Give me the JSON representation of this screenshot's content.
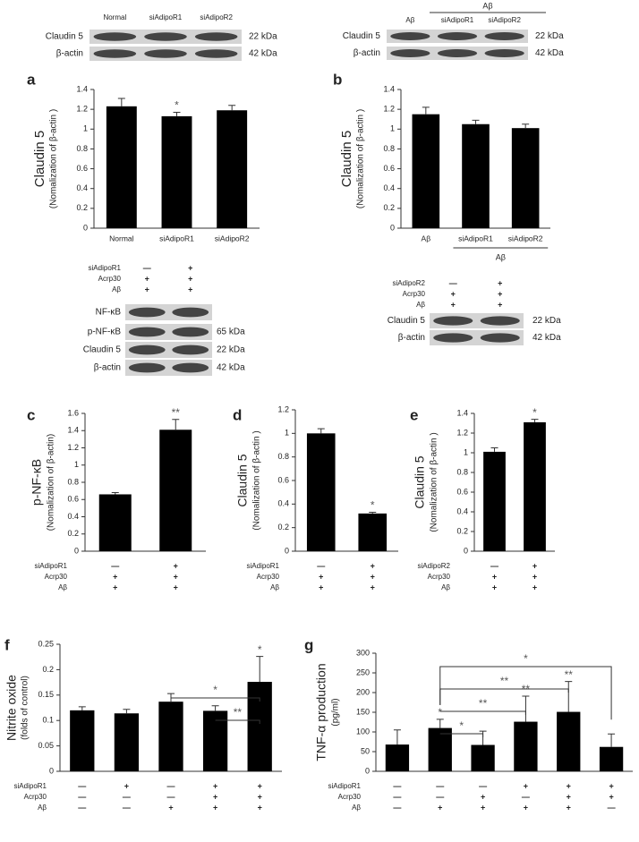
{
  "chart_data": [
    {
      "type": "bar",
      "panel": "a",
      "ylabel": "Claudin 5",
      "ylabel_sub": "(Nomalization of β-actin )",
      "categories": [
        "Normal",
        "siAdipoR1",
        "siAdipoR2"
      ],
      "values": [
        1.23,
        1.13,
        1.19
      ],
      "errors": [
        0.08,
        0.04,
        0.05
      ],
      "annotations": [
        null,
        "*",
        null
      ],
      "color": "#000000",
      "ylim": [
        0,
        1.4
      ],
      "yticks": [
        0,
        0.2,
        0.4,
        0.6,
        0.8,
        1,
        1.2,
        1.4
      ]
    },
    {
      "type": "bar",
      "panel": "b",
      "ylabel": "Claudin 5",
      "ylabel_sub": "(Nomalization of β-actin )",
      "categories": [
        "Aβ",
        "siAdipoR1",
        "siAdipoR2"
      ],
      "group_label": "Aβ",
      "values": [
        1.15,
        1.05,
        1.01
      ],
      "errors": [
        0.07,
        0.04,
        0.04
      ],
      "color": "#000000",
      "ylim": [
        0,
        1.4
      ],
      "yticks": [
        0,
        0.2,
        0.4,
        0.6,
        0.8,
        1,
        1.2,
        1.4
      ]
    },
    {
      "type": "bar",
      "panel": "c",
      "ylabel": "p-NF-κB",
      "ylabel_sub": "(Nomalization of β-actin)",
      "values": [
        0.66,
        1.41
      ],
      "errors": [
        0.02,
        0.12
      ],
      "annotations": [
        null,
        "**"
      ],
      "color": "#000000",
      "ylim": [
        0,
        1.6
      ],
      "yticks": [
        0,
        0.2,
        0.4,
        0.6,
        0.8,
        1,
        1.2,
        1.4,
        1.6
      ],
      "conditions": [
        {
          "name": "siAdipoR1",
          "signs": [
            "—",
            "+"
          ]
        },
        {
          "name": "Acrp30",
          "signs": [
            "+",
            "+"
          ]
        },
        {
          "name": "Aβ",
          "signs": [
            "+",
            "+"
          ]
        }
      ]
    },
    {
      "type": "bar",
      "panel": "d",
      "ylabel": "Claudin 5",
      "ylabel_sub": "(Nomalization of β-actin )",
      "values": [
        1.0,
        0.32
      ],
      "errors": [
        0.04,
        0.01
      ],
      "annotations": [
        null,
        "*"
      ],
      "color": "#000000",
      "ylim": [
        0,
        1.2
      ],
      "yticks": [
        0,
        0.2,
        0.4,
        0.6,
        0.8,
        1,
        1.2
      ],
      "conditions": [
        {
          "name": "siAdipoR1",
          "signs": [
            "—",
            "+"
          ]
        },
        {
          "name": "Acrp30",
          "signs": [
            "+",
            "+"
          ]
        },
        {
          "name": "Aβ",
          "signs": [
            "+",
            "+"
          ]
        }
      ]
    },
    {
      "type": "bar",
      "panel": "e",
      "ylabel": "Claudin 5",
      "ylabel_sub": "(Nomalization of β-actin )",
      "values": [
        1.01,
        1.31
      ],
      "errors": [
        0.04,
        0.03
      ],
      "annotations": [
        null,
        "*"
      ],
      "color": "#000000",
      "ylim": [
        0,
        1.4
      ],
      "yticks": [
        0,
        0.2,
        0.4,
        0.6,
        0.8,
        1,
        1.2,
        1.4
      ],
      "conditions": [
        {
          "name": "siAdipoR2",
          "signs": [
            "—",
            "+"
          ]
        },
        {
          "name": "Acrp30",
          "signs": [
            "+",
            "+"
          ]
        },
        {
          "name": "Aβ",
          "signs": [
            "+",
            "+"
          ]
        }
      ]
    },
    {
      "type": "bar",
      "panel": "f",
      "ylabel": "Nitrite oxide",
      "ylabel_sub": "(folds of control)",
      "values": [
        0.12,
        0.114,
        0.137,
        0.119,
        0.176
      ],
      "errors": [
        0.007,
        0.008,
        0.016,
        0.01,
        0.05
      ],
      "annotations": [
        null,
        null,
        null,
        null,
        "*"
      ],
      "brackets": [
        "*",
        "**"
      ],
      "color": "#000000",
      "ylim": [
        0,
        0.25
      ],
      "yticks": [
        0,
        0.05,
        0.1,
        0.15,
        0.2,
        0.25
      ],
      "conditions": [
        {
          "name": "siAdipoR1",
          "signs": [
            "—",
            "+",
            "—",
            "+",
            "+"
          ]
        },
        {
          "name": "Acrp30",
          "signs": [
            "—",
            "—",
            "—",
            "+",
            "+"
          ]
        },
        {
          "name": "Aβ",
          "signs": [
            "—",
            "—",
            "+",
            "+",
            "+"
          ]
        }
      ]
    },
    {
      "type": "bar",
      "panel": "g",
      "ylabel": "TNF-α production",
      "ylabel_sub": "(pg/ml)",
      "values": [
        68,
        110,
        67,
        126,
        151,
        62
      ],
      "errors": [
        37,
        22,
        35,
        65,
        77,
        33
      ],
      "annotations": [
        null,
        "*",
        null,
        "**",
        "**",
        null
      ],
      "brackets": [
        "*",
        "**",
        "**",
        "*"
      ],
      "color": "#000000",
      "ylim": [
        0,
        300
      ],
      "yticks": [
        0,
        50,
        100,
        150,
        200,
        250,
        300
      ],
      "conditions": [
        {
          "name": "siAdipoR1",
          "signs": [
            "—",
            "—",
            "—",
            "+",
            "+",
            "+"
          ]
        },
        {
          "name": "Acrp30",
          "signs": [
            "—",
            "—",
            "+",
            "—",
            "+",
            "+"
          ]
        },
        {
          "name": "Aβ",
          "signs": [
            "—",
            "+",
            "+",
            "+",
            "+",
            "—"
          ]
        }
      ]
    }
  ],
  "blots": [
    {
      "lanes": [
        "Normal",
        "siAdipoR1",
        "siAdipoR2"
      ],
      "rows": [
        {
          "label": "Claudin 5",
          "size": "22 kDa"
        },
        {
          "label": "β-actin",
          "size": "42 kDa"
        }
      ]
    },
    {
      "group": "Aβ",
      "lanes": [
        "Aβ",
        "siAdipoR1",
        "siAdipoR2"
      ],
      "rows": [
        {
          "label": "Claudin 5",
          "size": "22 kDa"
        },
        {
          "label": "β-actin",
          "size": "42 kDa"
        }
      ]
    },
    {
      "conditions": [
        {
          "name": "siAdipoR1",
          "signs": [
            "—",
            "+"
          ]
        },
        {
          "name": "Acrp30",
          "signs": [
            "+",
            "+"
          ]
        },
        {
          "name": "Aβ",
          "signs": [
            "+",
            "+"
          ]
        }
      ],
      "rows": [
        {
          "label": "NF-κB"
        },
        {
          "label": "p-NF-κB",
          "size": "65 kDa"
        },
        {
          "label": "Claudin 5",
          "size": "22 kDa"
        },
        {
          "label": "β-actin",
          "size": "42 kDa"
        }
      ]
    },
    {
      "conditions": [
        {
          "name": "siAdipoR2",
          "signs": [
            "—",
            "+"
          ]
        },
        {
          "name": "Acrp30",
          "signs": [
            "+",
            "+"
          ]
        },
        {
          "name": "Aβ",
          "signs": [
            "+",
            "+"
          ]
        }
      ],
      "rows": [
        {
          "label": "Claudin 5",
          "size": "22 kDa"
        },
        {
          "label": "β-actin",
          "size": "42 kDa"
        }
      ]
    }
  ]
}
